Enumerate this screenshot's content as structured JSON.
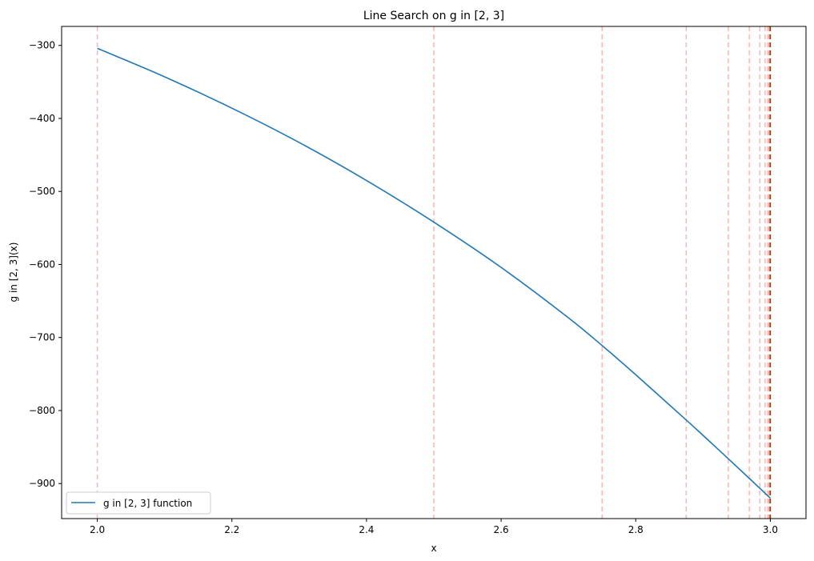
{
  "chart_data": {
    "type": "line",
    "title": "Line Search on g in [2, 3]",
    "xlabel": "x",
    "ylabel": "g in [2, 3](x)",
    "xlim": [
      1.947,
      3.053
    ],
    "ylim": [
      -948,
      -274
    ],
    "xticks": [
      2.0,
      2.2,
      2.4,
      2.6,
      2.8,
      3.0
    ],
    "xtick_labels": [
      "2.0",
      "2.2",
      "2.4",
      "2.6",
      "2.8",
      "3.0"
    ],
    "yticks": [
      -300,
      -400,
      -500,
      -600,
      -700,
      -800,
      -900
    ],
    "ytick_labels": [
      "−300",
      "−400",
      "−500",
      "−600",
      "−700",
      "−800",
      "−900"
    ],
    "grid": false,
    "legend_position": "lower-left",
    "series": [
      {
        "name": "g in [2, 3] function",
        "color": "#1f77b4",
        "x": [
          2.0,
          2.1,
          2.2,
          2.3,
          2.4,
          2.5,
          2.6,
          2.7,
          2.75,
          2.8,
          2.875,
          2.9,
          2.9375,
          3.0
        ],
        "y": [
          -304,
          -343,
          -386,
          -433,
          -485,
          -542,
          -604,
          -673,
          -711,
          -751,
          -813,
          -834,
          -866,
          -920
        ]
      }
    ],
    "search_points": {
      "x": [
        2.0,
        2.5,
        2.75,
        2.875,
        2.9375,
        2.96875,
        2.984375,
        2.9921875,
        2.99609375,
        2.998046875,
        2.9990234375,
        2.99951171875,
        2.999755859375,
        2.9998779296875,
        3.0
      ],
      "line_color": "#ff7f7f",
      "final_color": "#7f3b00"
    }
  }
}
